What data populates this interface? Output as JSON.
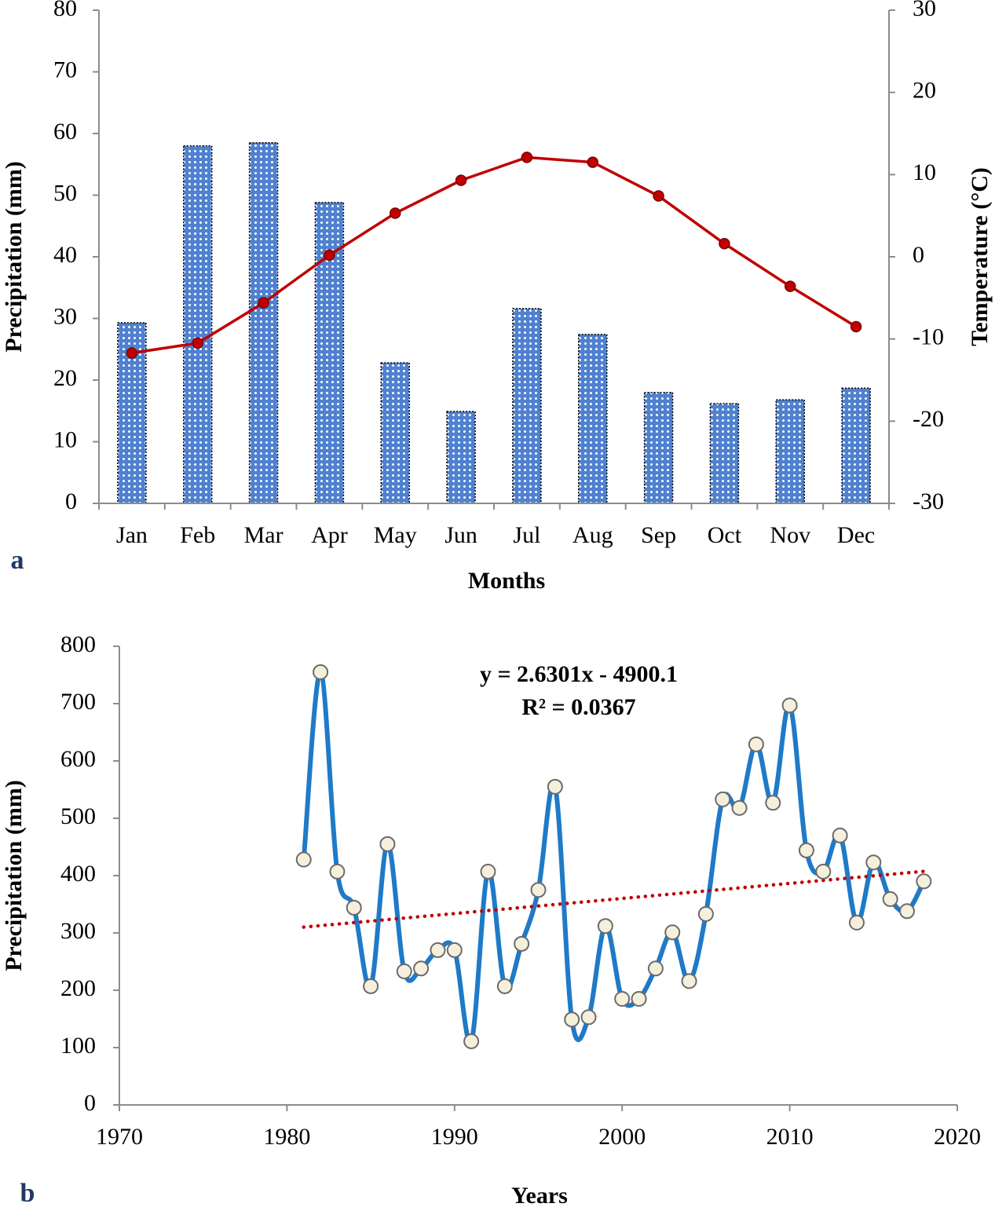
{
  "chart_data": [
    {
      "type": "bar-line",
      "panel_label": "a",
      "x_label": "Months",
      "y_label": "Precipitation (mm)",
      "y2_label": "Temperature (°C)",
      "categories": [
        "Jan",
        "Feb",
        "Mar",
        "Apr",
        "May",
        "Jun",
        "Jul",
        "Aug",
        "Sep",
        "Oct",
        "Nov",
        "Dec"
      ],
      "series": [
        {
          "type": "bar",
          "color": "#4f81d0",
          "values": [
            29.3,
            58,
            58.5,
            48.8,
            22.8,
            14.9,
            31.6,
            27.4,
            18,
            16.2,
            16.8,
            18.7
          ]
        },
        {
          "type": "line",
          "axis": "y2",
          "color": "#c00000",
          "values": [
            -11.7,
            -10.5,
            -5.6,
            0.2,
            5.3,
            9.3,
            12.1,
            11.5,
            7.4,
            1.6,
            -3.6,
            -8.5
          ]
        }
      ],
      "ylim": [
        0,
        80
      ],
      "yticks": [
        0,
        10,
        20,
        30,
        40,
        50,
        60,
        70,
        80
      ],
      "y2lim": [
        -30,
        30
      ],
      "y2ticks": [
        -30,
        -20,
        -10,
        0,
        10,
        20,
        30
      ],
      "grid": false
    },
    {
      "type": "line",
      "panel_label": "b",
      "x_label": "Years",
      "y_label": "Precipitation (mm)",
      "x": [
        1981,
        1982,
        1983,
        1984,
        1985,
        1986,
        1987,
        1988,
        1989,
        1990,
        1991,
        1992,
        1993,
        1994,
        1995,
        1996,
        1997,
        1998,
        1999,
        2000,
        2001,
        2002,
        2003,
        2004,
        2005,
        2006,
        2007,
        2008,
        2009,
        2010,
        2011,
        2012,
        2013,
        2014,
        2015,
        2016,
        2017,
        2018
      ],
      "series": [
        {
          "color": "#1f7ac8",
          "marker_color": "#f5f0dc",
          "smooth": true,
          "values": [
            428,
            755,
            407,
            344,
            207,
            455,
            233,
            238,
            270,
            270,
            111,
            407,
            207,
            281,
            375,
            555,
            149,
            153,
            312,
            185,
            185,
            238,
            301,
            216,
            333,
            533,
            518,
            629,
            527,
            697,
            444,
            407,
            470,
            318,
            423,
            359,
            338,
            390
          ]
        }
      ],
      "trendline": {
        "slope": 2.6301,
        "intercept": -4900.1,
        "color": "#c00000"
      },
      "annotations": [
        "y = 2.6301x - 4900.1",
        "R² = 0.0367"
      ],
      "xlim": [
        1970,
        2020
      ],
      "xticks": [
        1970,
        1980,
        1990,
        2000,
        2010,
        2020
      ],
      "ylim": [
        0,
        800
      ],
      "yticks": [
        0,
        100,
        200,
        300,
        400,
        500,
        600,
        700,
        800
      ],
      "grid": false
    }
  ]
}
